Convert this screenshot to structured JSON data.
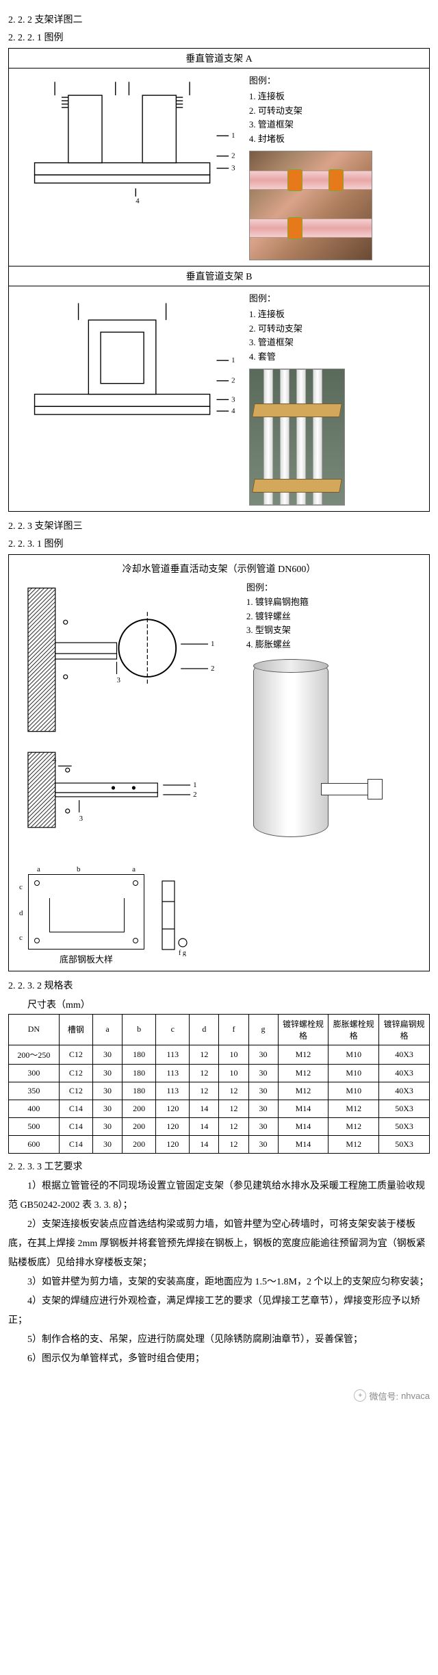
{
  "sec222": {
    "heading": "2. 2. 2 支架详图二",
    "sub": "2. 2. 2. 1 图例",
    "panelA": {
      "title": "垂直管道支架 A",
      "legend_title": "图例：",
      "items": [
        "1. 连接板",
        "2. 可转动支架",
        "3. 管道框架",
        "4. 封堵板"
      ],
      "labels": [
        "1",
        "2",
        "3",
        "4"
      ]
    },
    "panelB": {
      "title": "垂直管道支架 B",
      "legend_title": "图例：",
      "items": [
        "1. 连接板",
        "2. 可转动支架",
        "3. 管道框架",
        "4. 套管"
      ],
      "labels": [
        "1",
        "2",
        "3",
        "4"
      ]
    }
  },
  "sec223": {
    "heading": "2. 2. 3  支架详图三",
    "sub": "2. 2. 3. 1 图例",
    "panel": {
      "title": "冷却水管道垂直活动支架（示例管道 DN600）",
      "legend_title": "图例：",
      "items": [
        "1. 镀锌扁钢抱箍",
        "2. 镀锌螺丝",
        "3. 型钢支架",
        "4. 膨胀螺丝"
      ],
      "caption": "底部钢板大样",
      "dims": [
        "a",
        "b",
        "c",
        "d",
        "f",
        "g",
        "a",
        "b",
        "c",
        "d"
      ]
    }
  },
  "spec": {
    "heading": "2. 2. 3. 2  规格表",
    "title": "尺寸表（mm）",
    "columns": [
      "DN",
      "槽钢",
      "a",
      "b",
      "c",
      "d",
      "f",
      "g",
      "镀锌螺栓规格",
      "膨胀螺栓规格",
      "镀锌扁钢规格"
    ],
    "widths": [
      "12%",
      "8%",
      "7%",
      "8%",
      "8%",
      "7%",
      "7%",
      "7%",
      "12%",
      "12%",
      "12%"
    ],
    "rows": [
      [
        "200～250",
        "C12",
        "30",
        "180",
        "113",
        "12",
        "10",
        "30",
        "M12",
        "M10",
        "40X3"
      ],
      [
        "300",
        "C12",
        "30",
        "180",
        "113",
        "12",
        "10",
        "30",
        "M12",
        "M10",
        "40X3"
      ],
      [
        "350",
        "C12",
        "30",
        "180",
        "113",
        "12",
        "12",
        "30",
        "M12",
        "M10",
        "40X3"
      ],
      [
        "400",
        "C14",
        "30",
        "200",
        "120",
        "14",
        "12",
        "30",
        "M14",
        "M12",
        "50X3"
      ],
      [
        "500",
        "C14",
        "30",
        "200",
        "120",
        "14",
        "12",
        "30",
        "M14",
        "M12",
        "50X3"
      ],
      [
        "600",
        "C14",
        "30",
        "200",
        "120",
        "14",
        "12",
        "30",
        "M14",
        "M12",
        "50X3"
      ]
    ]
  },
  "proc": {
    "heading": "2. 2. 3. 3  工艺要求",
    "items": [
      "1）根据立管管径的不同现场设置立管固定支架（参见建筑给水排水及采暖工程施工质量验收规范 GB50242-2002 表 3. 3. 8）；",
      "2）支架连接板安装点应首选结构梁或剪力墙，如管井壁为空心砖墙时，可将支架安装于楼板底，在其上焊接  2mm  厚钢板并将套管预先焊接在钢板上，钢板的宽度应能逾往预留洞为宜（钢板紧贴楼板底）见给排水穿楼板支架；",
      "3）如管井壁为剪力墙，支架的安装高度，距地面应为 1.5～1.8M，2 个以上的支架应匀称安装；",
      "4）支架的焊缝应进行外观检查，满足焊接工艺的要求（见焊接工艺章节），焊接变形应予以矫正；",
      "5）制作合格的支、吊架，应进行防腐处理（见除锈防腐刷油章节），妥善保管；",
      "6）图示仅为单管样式，多管时组合使用；"
    ]
  },
  "footer": {
    "label": "微信号:",
    "id": "nhvaca"
  },
  "style": {
    "border_color": "#000000",
    "text_color": "#000000",
    "page_bg": "#ffffff",
    "footer_color": "#888888",
    "orange": "#e67a1a",
    "pink": "#e7a6a6"
  }
}
